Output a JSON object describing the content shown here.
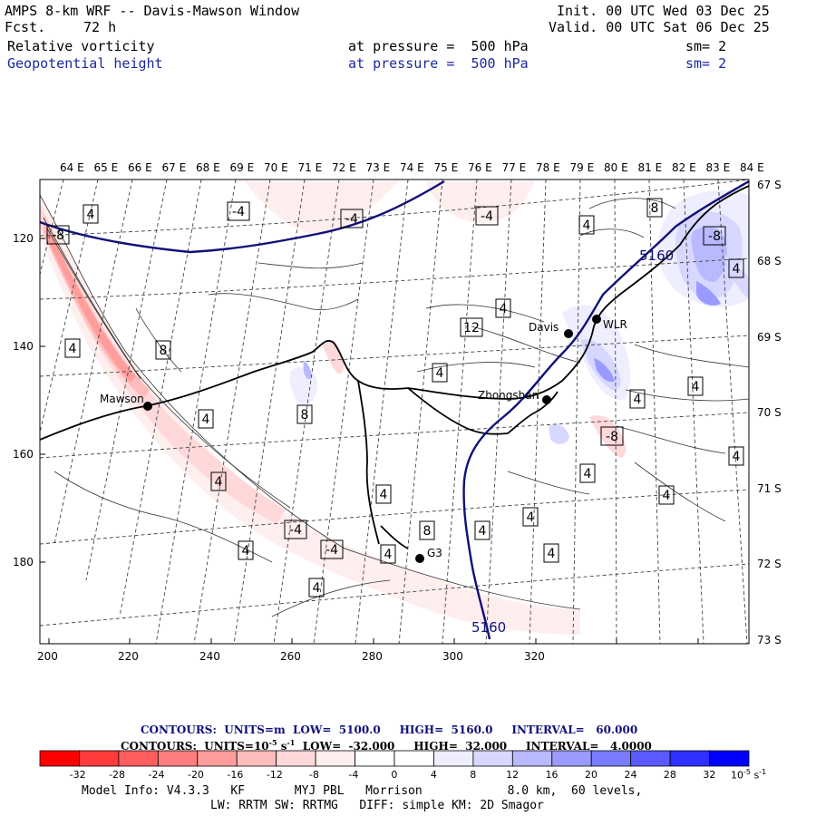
{
  "header": {
    "title": "AMPS 8-km WRF -- Davis-Mawson Window",
    "fcst_label": "Fcst.",
    "fcst_value": "72 h",
    "init": "Init. 00 UTC Wed 03 Dec 25",
    "valid": "Valid. 00 UTC Sat 06 Dec 25",
    "field1_name": "Relative vorticity",
    "field1_level": "at pressure =  500 hPa",
    "field1_sm": "sm= 2",
    "field2_name": "Geopotential height",
    "field2_level": "at pressure =  500 hPa",
    "field2_sm": "sm= 2"
  },
  "top_axis": [
    "64 E",
    "65 E",
    "66 E",
    "67 E",
    "68 E",
    "69 E",
    "70 E",
    "71 E",
    "72 E",
    "73 E",
    "74 E",
    "75 E",
    "76 E",
    "77 E",
    "78 E",
    "79 E",
    "80 E",
    "81 E",
    "82 E",
    "83 E",
    "84 E"
  ],
  "right_axis": [
    "67 S",
    "68 S",
    "69 S",
    "70 S",
    "71 S",
    "72 S",
    "73 S"
  ],
  "left_axis": [
    "120",
    "140",
    "160",
    "180"
  ],
  "bottom_axis": [
    "200",
    "220",
    "240",
    "260",
    "280",
    "300",
    "320"
  ],
  "stations": {
    "mawson": "Mawson",
    "davis": "Davis",
    "wlr": "WLR",
    "zhongshan": "Zhongshan",
    "g3": "G3"
  },
  "height_labels": [
    "5160",
    "5160"
  ],
  "vort_labels": [
    "4",
    "-4",
    "-4",
    "-4",
    "-8",
    "8",
    "4",
    "4",
    "4",
    "-8",
    "4",
    "-4",
    "-4",
    "4",
    "4",
    "4",
    "8",
    "4",
    "4",
    "4",
    "8",
    "12",
    "4",
    "8",
    "4",
    "-8",
    "4",
    "4",
    "4",
    "4",
    "4",
    "4",
    "4"
  ],
  "footer": {
    "contours1": "CONTOURS:  UNITS=m  LOW=  5100.0     HIGH=  5160.0     INTERVAL=   60.000",
    "contours2_pre": "CONTOURS:  UNITS=10",
    "contours2_exp": "-5",
    "contours2_mid": " s",
    "contours2_exp2": "-1",
    "contours2_post": "  LOW=  -32.000     HIGH=  32.000     INTERVAL=   4.0000",
    "colorbar_ticks": [
      "-32",
      "-28",
      "-24",
      "-20",
      "-16",
      "-12",
      "-8",
      "-4",
      "0",
      "4",
      "8",
      "12",
      "16",
      "20",
      "24",
      "28",
      "32"
    ],
    "colorbar_unit": "10",
    "colorbar_unit_exp": "-5",
    "colorbar_unit_s": " s",
    "colorbar_unit_exp2": "-1",
    "colorbar_colors": [
      "#ff0000",
      "#ff3b3b",
      "#ff5d5d",
      "#ff7d7d",
      "#ff9d9d",
      "#ffbcbc",
      "#ffd9d9",
      "#ffeeee",
      "#ffffff",
      "#ffffff",
      "#eeeeff",
      "#d7d7ff",
      "#b9b9ff",
      "#9b9bff",
      "#7b7bff",
      "#5a5aff",
      "#2f2fff",
      "#0000ff"
    ],
    "model_info": "Model Info: V4.3.3   KF       MYJ PBL   Morrison            8.0 km,  60 levels,",
    "model_info2": "LW: RRTM SW: RRTMG   DIFF: simple KM: 2D Smagor"
  }
}
